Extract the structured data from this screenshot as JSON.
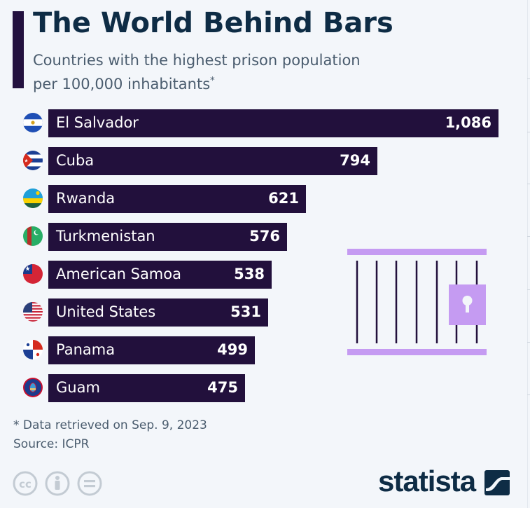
{
  "header": {
    "title": "The World Behind Bars",
    "subtitle_line1": "Countries with the highest prison population",
    "subtitle_line2": "per 100,000 inhabitants",
    "subtitle_marker": "*"
  },
  "chart_data": {
    "type": "bar",
    "orientation": "horizontal",
    "title": "The World Behind Bars",
    "subtitle": "Countries with the highest prison population per 100,000 inhabitants*",
    "categories": [
      "El Salvador",
      "Cuba",
      "Rwanda",
      "Turkmenistan",
      "American Samoa",
      "United States",
      "Panama",
      "Guam"
    ],
    "values": [
      1086,
      794,
      621,
      576,
      538,
      531,
      499,
      475
    ],
    "value_labels": [
      "1,086",
      "794",
      "621",
      "576",
      "538",
      "531",
      "499",
      "475"
    ],
    "flags": [
      "el-salvador-flag-icon",
      "cuba-flag-icon",
      "rwanda-flag-icon",
      "turkmenistan-flag-icon",
      "american-samoa-flag-icon",
      "united-states-flag-icon",
      "panama-flag-icon",
      "guam-flag-icon"
    ],
    "bar_color": "#22103c",
    "xlim": [
      0,
      1086
    ],
    "grid": false
  },
  "footer": {
    "footnote": "* Data retrieved on Sep. 9, 2023",
    "source": "Source: ICPR",
    "brand": "statista",
    "license_icons": [
      "cc-icon",
      "attribution-icon",
      "no-derivatives-icon"
    ]
  },
  "illustration": {
    "name": "prison-cell-icon",
    "color": "#c59bf2"
  }
}
